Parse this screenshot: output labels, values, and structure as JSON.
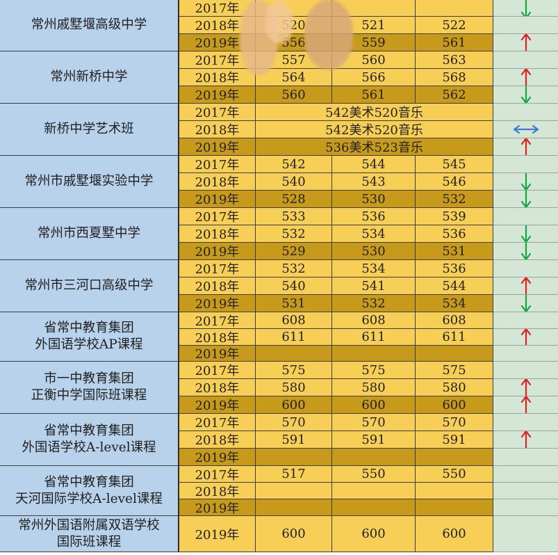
{
  "year_suffix": "年",
  "colors": {
    "school_bg": "#b9d2ec",
    "row_light": "#f7cf56",
    "row_dark": "#c79a1c",
    "trend_bg": "#d4e6d6",
    "up": "#e02020",
    "down": "#17a640",
    "flat": "#3b78d8"
  },
  "schools": [
    {
      "name_lines": [
        "常州戚墅堰高级中学"
      ],
      "rows": [
        {
          "year": "2017年",
          "shade": "light",
          "values": [
            "",
            "",
            ""
          ],
          "trend": "down-partial"
        },
        {
          "year": "2018年",
          "shade": "light",
          "values": [
            "520",
            "521",
            "522"
          ],
          "trend": ""
        },
        {
          "year": "2019年",
          "shade": "dark",
          "values": [
            "556",
            "559",
            "561"
          ],
          "trend": "up"
        }
      ]
    },
    {
      "name_lines": [
        "常州新桥中学"
      ],
      "rows": [
        {
          "year": "2017年",
          "shade": "light",
          "values": [
            "557",
            "560",
            "563"
          ],
          "trend": ""
        },
        {
          "year": "2018年",
          "shade": "light",
          "values": [
            "564",
            "566",
            "568"
          ],
          "trend": "up"
        },
        {
          "year": "2019年",
          "shade": "dark",
          "values": [
            "560",
            "561",
            "562"
          ],
          "trend": "down"
        }
      ]
    },
    {
      "name_lines": [
        "新桥中学艺术班"
      ],
      "rows": [
        {
          "year": "2017年",
          "shade": "light",
          "merged": "542美术520音乐",
          "trend": ""
        },
        {
          "year": "2018年",
          "shade": "light",
          "merged": "542美术520音乐",
          "trend": "flat"
        },
        {
          "year": "2019年",
          "shade": "dark",
          "merged": "536美术523音乐",
          "trend": "up"
        }
      ]
    },
    {
      "name_lines": [
        "常州市戚墅堰实验中学"
      ],
      "rows": [
        {
          "year": "2017年",
          "shade": "light",
          "values": [
            "542",
            "544",
            "545"
          ],
          "trend": ""
        },
        {
          "year": "2018年",
          "shade": "light",
          "values": [
            "540",
            "543",
            "546"
          ],
          "trend": "down"
        },
        {
          "year": "2019年",
          "shade": "dark",
          "values": [
            "528",
            "530",
            "532"
          ],
          "trend": "down"
        }
      ]
    },
    {
      "name_lines": [
        "常州市西夏墅中学"
      ],
      "rows": [
        {
          "year": "2017年",
          "shade": "light",
          "values": [
            "533",
            "536",
            "539"
          ],
          "trend": ""
        },
        {
          "year": "2018年",
          "shade": "light",
          "values": [
            "532",
            "534",
            "536"
          ],
          "trend": "down"
        },
        {
          "year": "2019年",
          "shade": "dark",
          "values": [
            "529",
            "530",
            "531"
          ],
          "trend": "down"
        }
      ]
    },
    {
      "name_lines": [
        "常州市三河口高级中学"
      ],
      "rows": [
        {
          "year": "2017年",
          "shade": "light",
          "values": [
            "532",
            "534",
            "536"
          ],
          "trend": ""
        },
        {
          "year": "2018年",
          "shade": "light",
          "values": [
            "540",
            "541",
            "544"
          ],
          "trend": "up"
        },
        {
          "year": "2019年",
          "shade": "dark",
          "values": [
            "531",
            "532",
            "534"
          ],
          "trend": "down"
        }
      ]
    },
    {
      "name_lines": [
        "省常中教育集团",
        "外国语学校AP课程"
      ],
      "rows": [
        {
          "year": "2017年",
          "shade": "light",
          "values": [
            "608",
            "608",
            "608"
          ],
          "trend": ""
        },
        {
          "year": "2018年",
          "shade": "light",
          "values": [
            "611",
            "611",
            "611"
          ],
          "trend": "up"
        },
        {
          "year": "2019年",
          "shade": "dark",
          "values": [
            "",
            "",
            ""
          ],
          "trend": ""
        }
      ]
    },
    {
      "name_lines": [
        "市一中教育集团",
        "正衡中学国际班课程"
      ],
      "rows": [
        {
          "year": "2017年",
          "shade": "light",
          "values": [
            "575",
            "575",
            "575"
          ],
          "trend": ""
        },
        {
          "year": "2018年",
          "shade": "light",
          "values": [
            "580",
            "580",
            "580"
          ],
          "trend": "up"
        },
        {
          "year": "2019年",
          "shade": "dark",
          "values": [
            "600",
            "600",
            "600"
          ],
          "trend": "up"
        }
      ]
    },
    {
      "name_lines": [
        "省常中教育集团",
        "外国语学校A-level课程"
      ],
      "rows": [
        {
          "year": "2017年",
          "shade": "light",
          "values": [
            "570",
            "570",
            "570"
          ],
          "trend": ""
        },
        {
          "year": "2018年",
          "shade": "light",
          "values": [
            "591",
            "591",
            "591"
          ],
          "trend": "up"
        },
        {
          "year": "2019年",
          "shade": "dark",
          "values": [
            "",
            "",
            ""
          ],
          "trend": ""
        }
      ]
    },
    {
      "name_lines": [
        "省常中教育集团",
        "天河国际学校A-level课程"
      ],
      "rows": [
        {
          "year": "2017年",
          "shade": "light",
          "values": [
            "517",
            "550",
            "550"
          ],
          "trend": ""
        },
        {
          "year": "2018年",
          "shade": "light",
          "values": [
            "",
            "",
            ""
          ],
          "trend": ""
        },
        {
          "year": "2019年",
          "shade": "dark",
          "values": [
            "",
            "",
            ""
          ],
          "trend": ""
        }
      ]
    },
    {
      "name_lines": [
        "常州外国语附属双语学校",
        "国际班课程"
      ],
      "rows": [
        {
          "year": "2019年",
          "shade": "light",
          "values": [
            "600",
            "600",
            "600"
          ],
          "trend": "",
          "tall": true
        }
      ]
    }
  ]
}
